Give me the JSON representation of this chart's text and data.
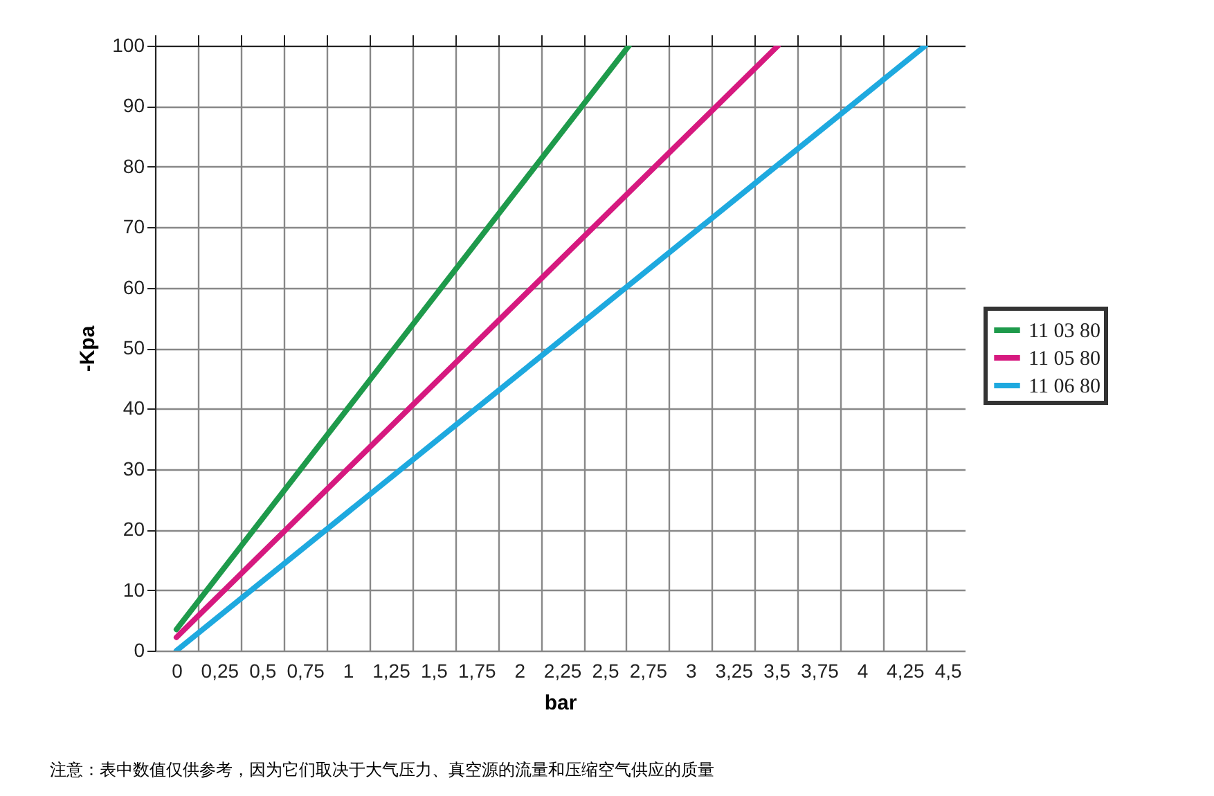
{
  "chart_data": {
    "type": "line",
    "xlabel": "bar",
    "ylabel": "-Kpa",
    "series": [
      {
        "name": "11 03 80",
        "color": "#1e9a4b",
        "x": [
          0,
          2.64
        ],
        "values": [
          3.5,
          100
        ]
      },
      {
        "name": "11 05 80",
        "color": "#d6197f",
        "x": [
          0,
          3.51
        ],
        "values": [
          2.2,
          100
        ]
      },
      {
        "name": "11 06 80",
        "color": "#1ea9df",
        "x": [
          0,
          4.37
        ],
        "values": [
          0,
          100
        ]
      }
    ],
    "xlim": [
      -0.125,
      4.6
    ],
    "xticks": [
      0,
      {
        "value": 0.25,
        "label": "0,25"
      },
      {
        "value": 0.5,
        "label": "0,5"
      },
      {
        "value": 0.75,
        "label": "0,75"
      },
      1,
      {
        "value": 1.25,
        "label": "1,25"
      },
      {
        "value": 1.5,
        "label": "1,5"
      },
      {
        "value": 1.75,
        "label": "1,75"
      },
      2,
      {
        "value": 2.25,
        "label": "2,25"
      },
      {
        "value": 2.5,
        "label": "2,5"
      },
      {
        "value": 2.75,
        "label": "2,75"
      },
      3,
      {
        "value": 3.25,
        "label": "3,25"
      },
      {
        "value": 3.5,
        "label": "3,5"
      },
      {
        "value": 3.75,
        "label": "3,75"
      },
      4,
      {
        "value": 4.25,
        "label": "4,25"
      },
      {
        "value": 4.5,
        "label": "4,5"
      },
      {
        "value": -0.125,
        "label": null
      },
      {
        "value": 0.125,
        "label": null
      },
      {
        "value": 0.375,
        "label": null
      },
      {
        "value": 0.625,
        "label": null
      },
      {
        "value": 0.875,
        "label": null
      },
      {
        "value": 1.125,
        "label": null
      },
      {
        "value": 1.375,
        "label": null
      },
      {
        "value": 1.625,
        "label": null
      },
      {
        "value": 1.875,
        "label": null
      },
      {
        "value": 2.125,
        "label": null
      },
      {
        "value": 2.375,
        "label": null
      },
      {
        "value": 2.625,
        "label": null
      },
      {
        "value": 2.875,
        "label": null
      },
      {
        "value": 3.125,
        "label": null
      },
      {
        "value": 3.375,
        "label": null
      },
      {
        "value": 3.625,
        "label": null
      },
      {
        "value": 3.875,
        "label": null
      },
      {
        "value": 4.125,
        "label": null
      },
      {
        "value": 4.375,
        "label": null
      }
    ],
    "ylim": [
      0,
      100
    ],
    "yticks": [
      0,
      10,
      20,
      30,
      40,
      50,
      60,
      70,
      80,
      90,
      100
    ],
    "grid": true,
    "legend": "right",
    "marker": "none",
    "line_style": "solid",
    "annotations": [
      "注意：表中数值仅供参考，因为它们取决于大气压力、真空源的流量和压缩空气供应的质量"
    ]
  }
}
